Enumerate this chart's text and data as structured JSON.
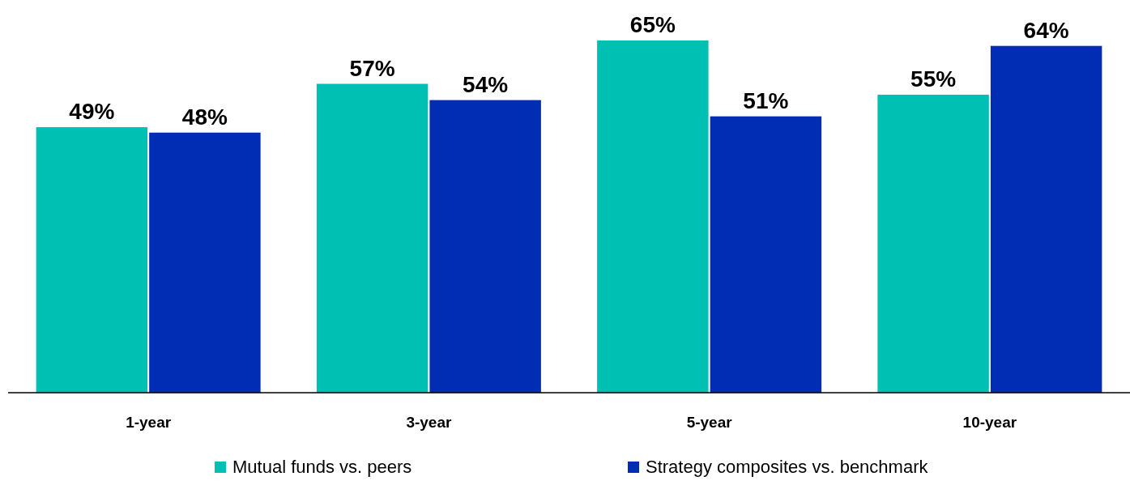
{
  "chart_data": {
    "type": "bar",
    "categories": [
      "1-year",
      "3-year",
      "5-year",
      "10-year"
    ],
    "series": [
      {
        "name": "Mutual funds vs. peers",
        "color": "#00bfb3",
        "values": [
          49,
          57,
          65,
          55
        ],
        "value_labels": [
          "49%",
          "57%",
          "65%",
          "55%"
        ]
      },
      {
        "name": "Strategy composites vs. benchmark",
        "color": "#002db3",
        "values": [
          48,
          54,
          51,
          64
        ],
        "value_labels": [
          "48%",
          "54%",
          "51%",
          "64%"
        ]
      }
    ],
    "legend": "bottom"
  }
}
